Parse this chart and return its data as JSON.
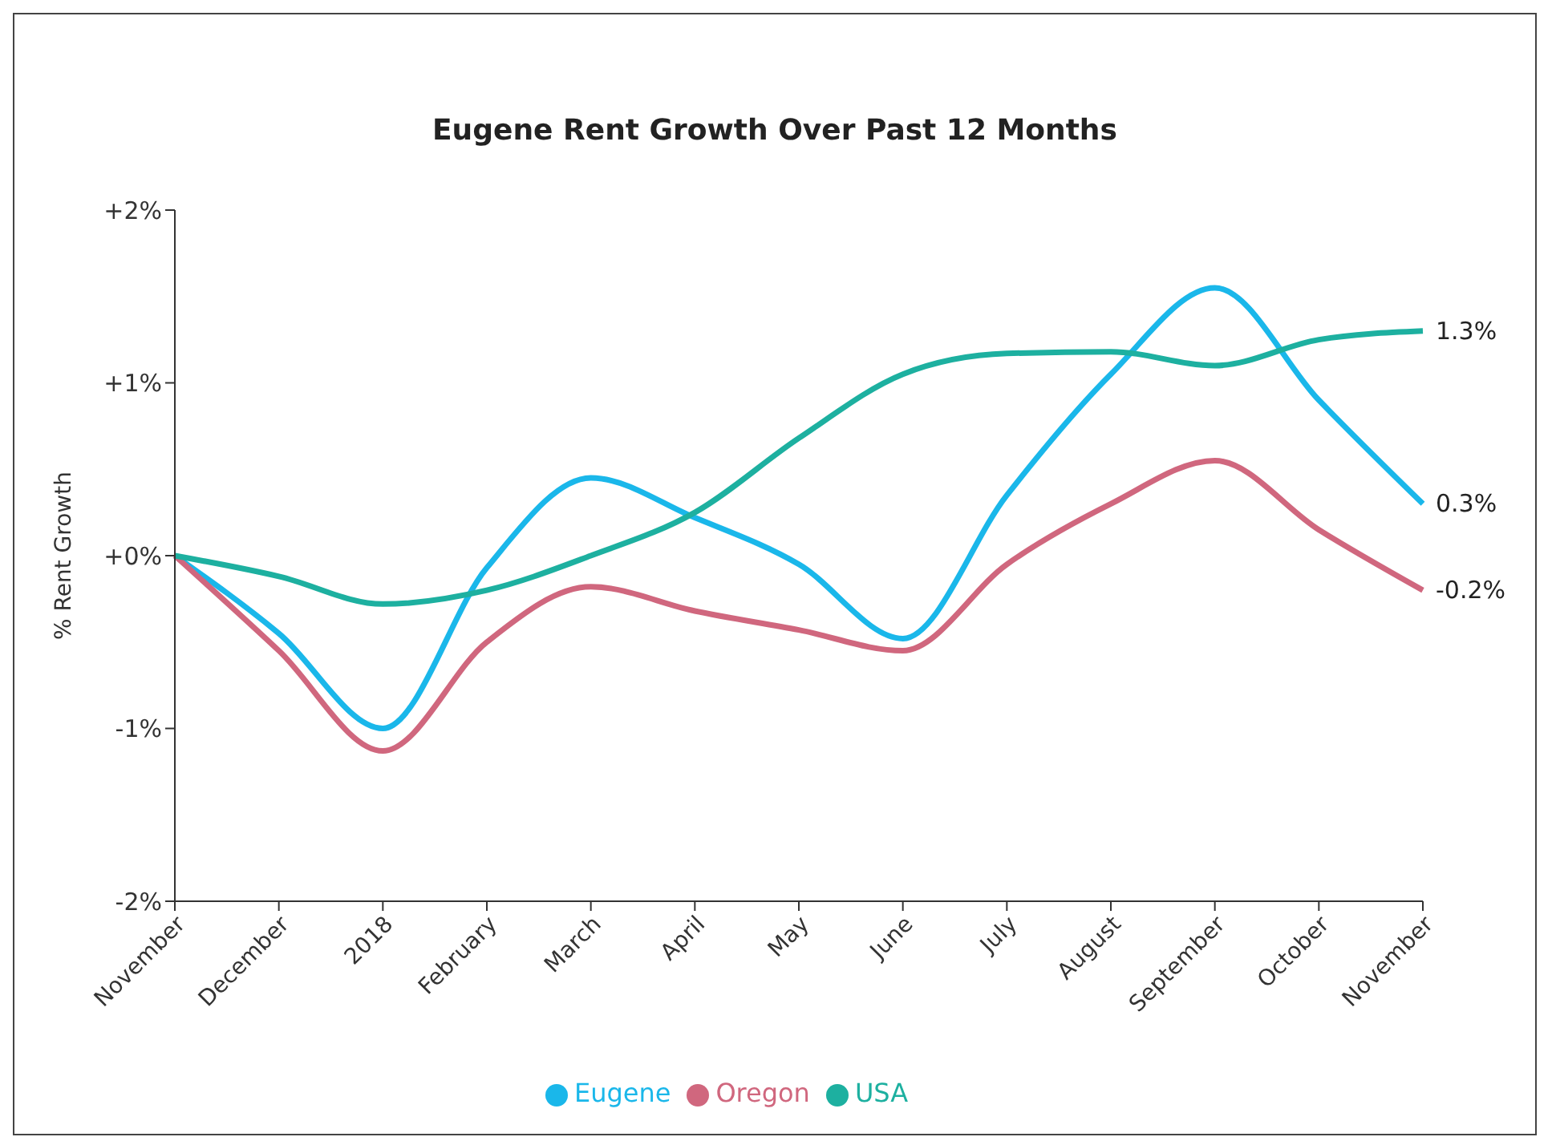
{
  "chart_data": {
    "type": "line",
    "title": "Eugene Rent Growth Over Past 12 Months",
    "ylabel": "% Rent Growth",
    "categories": [
      "November",
      "December",
      "2018",
      "February",
      "March",
      "April",
      "May",
      "June",
      "July",
      "August",
      "September",
      "October",
      "November"
    ],
    "series": [
      {
        "name": "Eugene",
        "color": "#1ab7ea",
        "values": [
          0,
          -0.45,
          -1.0,
          -0.07,
          0.45,
          0.22,
          -0.05,
          -0.48,
          0.35,
          1.05,
          1.55,
          0.9,
          0.3
        ],
        "value_labels": [
          null,
          null,
          null,
          null,
          null,
          null,
          null,
          null,
          null,
          null,
          null,
          null,
          "0.3%"
        ]
      },
      {
        "name": "Oregon",
        "color": "#d0677e",
        "values": [
          0,
          -0.55,
          -1.13,
          -0.5,
          -0.18,
          -0.32,
          -0.43,
          -0.55,
          -0.05,
          0.3,
          0.55,
          0.15,
          -0.2
        ],
        "value_labels": [
          null,
          null,
          null,
          null,
          null,
          null,
          null,
          null,
          null,
          null,
          null,
          null,
          "-0.2%"
        ]
      },
      {
        "name": "USA",
        "color": "#1db0a0",
        "values": [
          0,
          -0.12,
          -0.28,
          -0.2,
          0.0,
          0.25,
          0.68,
          1.05,
          1.17,
          1.18,
          1.1,
          1.25,
          1.3
        ],
        "value_labels": [
          null,
          null,
          null,
          null,
          null,
          null,
          null,
          null,
          null,
          null,
          null,
          null,
          "1.3%"
        ]
      }
    ],
    "ylim": [
      -2,
      2
    ],
    "yticks": [
      {
        "value": 2,
        "label": "+2%"
      },
      {
        "value": 1,
        "label": "+1%"
      },
      {
        "value": 0,
        "label": "+0%"
      },
      {
        "value": -1,
        "label": "-1%"
      },
      {
        "value": -2,
        "label": "-2%"
      }
    ],
    "grid": false,
    "legend": "bottom",
    "marker": "none",
    "line_style": "solid"
  }
}
